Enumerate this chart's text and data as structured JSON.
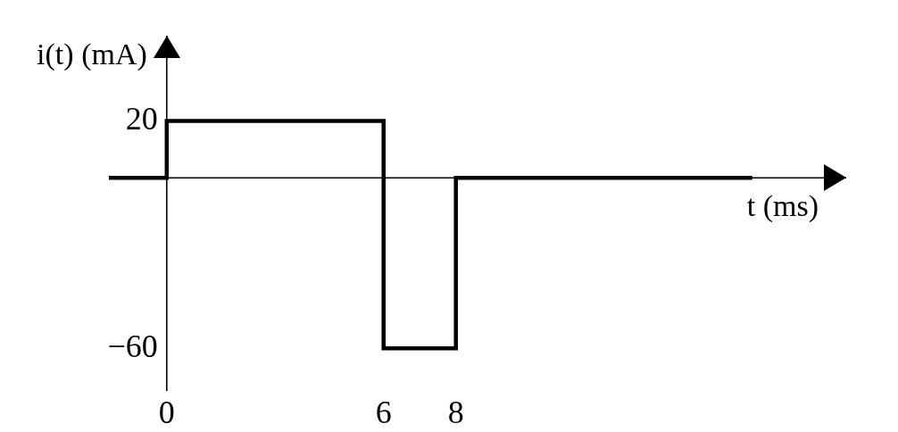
{
  "chart_data": {
    "type": "step",
    "xlabel": "t (ms)",
    "ylabel": "i(t) (mA)",
    "x": [
      -1.6,
      0,
      6,
      8,
      16.2
    ],
    "values": [
      0,
      20,
      -60,
      0,
      0
    ],
    "color": "#000000",
    "marker": "none",
    "xlim": [
      -1.6,
      18.8
    ],
    "xticks": [
      0,
      6,
      8
    ],
    "ylim": [
      -75,
      50
    ],
    "yticks": [
      20,
      {
        "value": -60,
        "label": "−60"
      }
    ]
  }
}
